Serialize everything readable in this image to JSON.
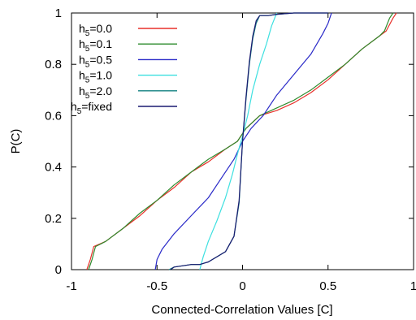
{
  "chart_data": {
    "type": "line",
    "title": "",
    "xlabel": "Connected-Correlation Values [C]",
    "ylabel": "P(C)",
    "xlim": [
      -1,
      1
    ],
    "ylim": [
      0,
      1
    ],
    "xticks": [
      -1,
      -0.5,
      0,
      0.5,
      1
    ],
    "yticks": [
      0,
      0.2,
      0.4,
      0.6,
      0.8,
      1
    ],
    "xtick_labels": [
      "-1",
      "-0.5",
      "0",
      "0.5",
      "1"
    ],
    "ytick_labels": [
      "0",
      "0.2",
      "0.4",
      "0.6",
      "0.8",
      "1"
    ],
    "grid": false,
    "legend_position": "top-left",
    "series": [
      {
        "name": "h5=0.0",
        "name_main": "h",
        "name_sub": "5",
        "name_rest": "=0.0",
        "color": "#e8302a",
        "x": [
          -0.91,
          -0.89,
          -0.87,
          -0.8,
          -0.7,
          -0.6,
          -0.5,
          -0.4,
          -0.3,
          -0.2,
          -0.1,
          -0.03,
          0.02,
          0.1,
          0.2,
          0.3,
          0.4,
          0.5,
          0.6,
          0.7,
          0.8,
          0.84,
          0.88,
          0.9
        ],
        "y": [
          0.0,
          0.04,
          0.09,
          0.11,
          0.16,
          0.21,
          0.27,
          0.32,
          0.38,
          0.42,
          0.47,
          0.5,
          0.55,
          0.6,
          0.62,
          0.65,
          0.69,
          0.74,
          0.8,
          0.86,
          0.91,
          0.93,
          0.98,
          1.0
        ]
      },
      {
        "name": "h5=0.1",
        "name_main": "h",
        "name_sub": "5",
        "name_rest": "=0.1",
        "color": "#2e8b2e",
        "x": [
          -0.9,
          -0.88,
          -0.86,
          -0.8,
          -0.7,
          -0.6,
          -0.5,
          -0.4,
          -0.3,
          -0.2,
          -0.1,
          -0.03,
          0.02,
          0.1,
          0.2,
          0.3,
          0.4,
          0.5,
          0.6,
          0.7,
          0.8,
          0.83,
          0.86,
          0.88
        ],
        "y": [
          0.0,
          0.04,
          0.09,
          0.11,
          0.16,
          0.22,
          0.27,
          0.33,
          0.38,
          0.43,
          0.47,
          0.5,
          0.55,
          0.6,
          0.63,
          0.66,
          0.7,
          0.75,
          0.8,
          0.86,
          0.91,
          0.93,
          0.98,
          1.0
        ]
      },
      {
        "name": "h5=0.5",
        "name_main": "h",
        "name_sub": "5",
        "name_rest": "=0.5",
        "color": "#2a2ac8",
        "x": [
          -0.51,
          -0.5,
          -0.47,
          -0.4,
          -0.3,
          -0.2,
          -0.12,
          -0.05,
          0.0,
          0.05,
          0.12,
          0.2,
          0.3,
          0.4,
          0.47,
          0.5,
          0.52
        ],
        "y": [
          0.0,
          0.04,
          0.08,
          0.14,
          0.21,
          0.28,
          0.36,
          0.43,
          0.5,
          0.55,
          0.6,
          0.68,
          0.76,
          0.84,
          0.92,
          0.96,
          1.0
        ]
      },
      {
        "name": "h5=1.0",
        "name_main": "h",
        "name_sub": "5",
        "name_rest": "=1.0",
        "color": "#3ee0e0",
        "x": [
          -0.25,
          -0.23,
          -0.2,
          -0.15,
          -0.1,
          -0.06,
          -0.03,
          0.0,
          0.03,
          0.06,
          0.1,
          0.14,
          0.17,
          0.2
        ],
        "y": [
          0.0,
          0.05,
          0.11,
          0.19,
          0.28,
          0.37,
          0.45,
          0.52,
          0.6,
          0.7,
          0.8,
          0.88,
          0.95,
          1.0
        ]
      },
      {
        "name": "h5=2.0",
        "name_main": "h",
        "name_sub": "5",
        "name_rest": "=2.0",
        "color": "#118080",
        "x": [
          -0.43,
          -0.4,
          -0.3,
          -0.25,
          -0.2,
          -0.1,
          -0.05,
          -0.02,
          0.0,
          0.02,
          0.04,
          0.06,
          0.08,
          0.1,
          0.15,
          0.2,
          0.3,
          0.4,
          0.5
        ],
        "y": [
          0.0,
          0.01,
          0.02,
          0.02,
          0.03,
          0.07,
          0.13,
          0.26,
          0.5,
          0.66,
          0.8,
          0.9,
          0.96,
          0.99,
          0.99,
          0.995,
          1.0,
          1.0,
          1.0
        ]
      },
      {
        "name": "h5=fixed",
        "name_main": "h",
        "name_sub": "5",
        "name_rest": "=fixed",
        "color": "#1a1a70",
        "x": [
          -0.42,
          -0.4,
          -0.3,
          -0.25,
          -0.2,
          -0.1,
          -0.05,
          -0.02,
          0.0,
          0.02,
          0.04,
          0.06,
          0.08,
          0.1,
          0.15,
          0.2,
          0.3,
          0.4,
          0.5
        ],
        "y": [
          0.0,
          0.01,
          0.02,
          0.02,
          0.03,
          0.07,
          0.13,
          0.27,
          0.5,
          0.67,
          0.81,
          0.91,
          0.97,
          0.99,
          0.99,
          0.995,
          1.0,
          1.0,
          1.0
        ]
      }
    ]
  }
}
